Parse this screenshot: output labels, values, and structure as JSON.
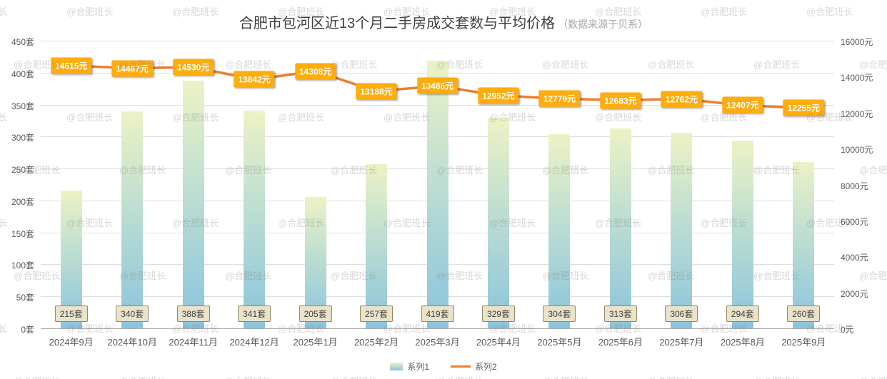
{
  "title": "合肥市包河区近13个月二手房成交套数与平均价格",
  "subtitle": "（数据来源于贝系）",
  "watermark": "@合肥班长",
  "legend": [
    "系列1",
    "系列2"
  ],
  "chart_data": {
    "type": "combo",
    "title": "合肥市包河区近13个月二手房成交套数与平均价格",
    "subtitle": "（数据来源于贝系）",
    "categories": [
      "2024年9月",
      "2024年10月",
      "2024年11月",
      "2024年12月",
      "2025年1月",
      "2025年2月",
      "2025年3月",
      "2025年4月",
      "2025年5月",
      "2025年6月",
      "2025年7月",
      "2025年8月",
      "2025年9月"
    ],
    "series": [
      {
        "name": "系列1",
        "type": "bar",
        "axis": "left",
        "unit": "套",
        "values": [
          215,
          340,
          388,
          341,
          205,
          257,
          419,
          329,
          304,
          313,
          306,
          294,
          260
        ]
      },
      {
        "name": "系列2",
        "type": "line",
        "axis": "right",
        "unit": "元",
        "values": [
          14615,
          14467,
          14530,
          13842,
          14308,
          13188,
          13486,
          12952,
          12779,
          12683,
          12762,
          12407,
          12255
        ]
      }
    ],
    "left_axis": {
      "min": 0,
      "max": 450,
      "step": 50,
      "suffix": "套"
    },
    "right_axis": {
      "min": 0,
      "max": 16000,
      "step": 2000,
      "suffix": "元"
    },
    "grid": true,
    "legend_position": "bottom",
    "colors": {
      "bar_top": "#EDF2C5",
      "bar_bottom": "#8AC4DD",
      "line": "#ED7D31",
      "price_label_bg": "#FFAC0C",
      "count_label_bg": "#EAE3CA"
    }
  }
}
